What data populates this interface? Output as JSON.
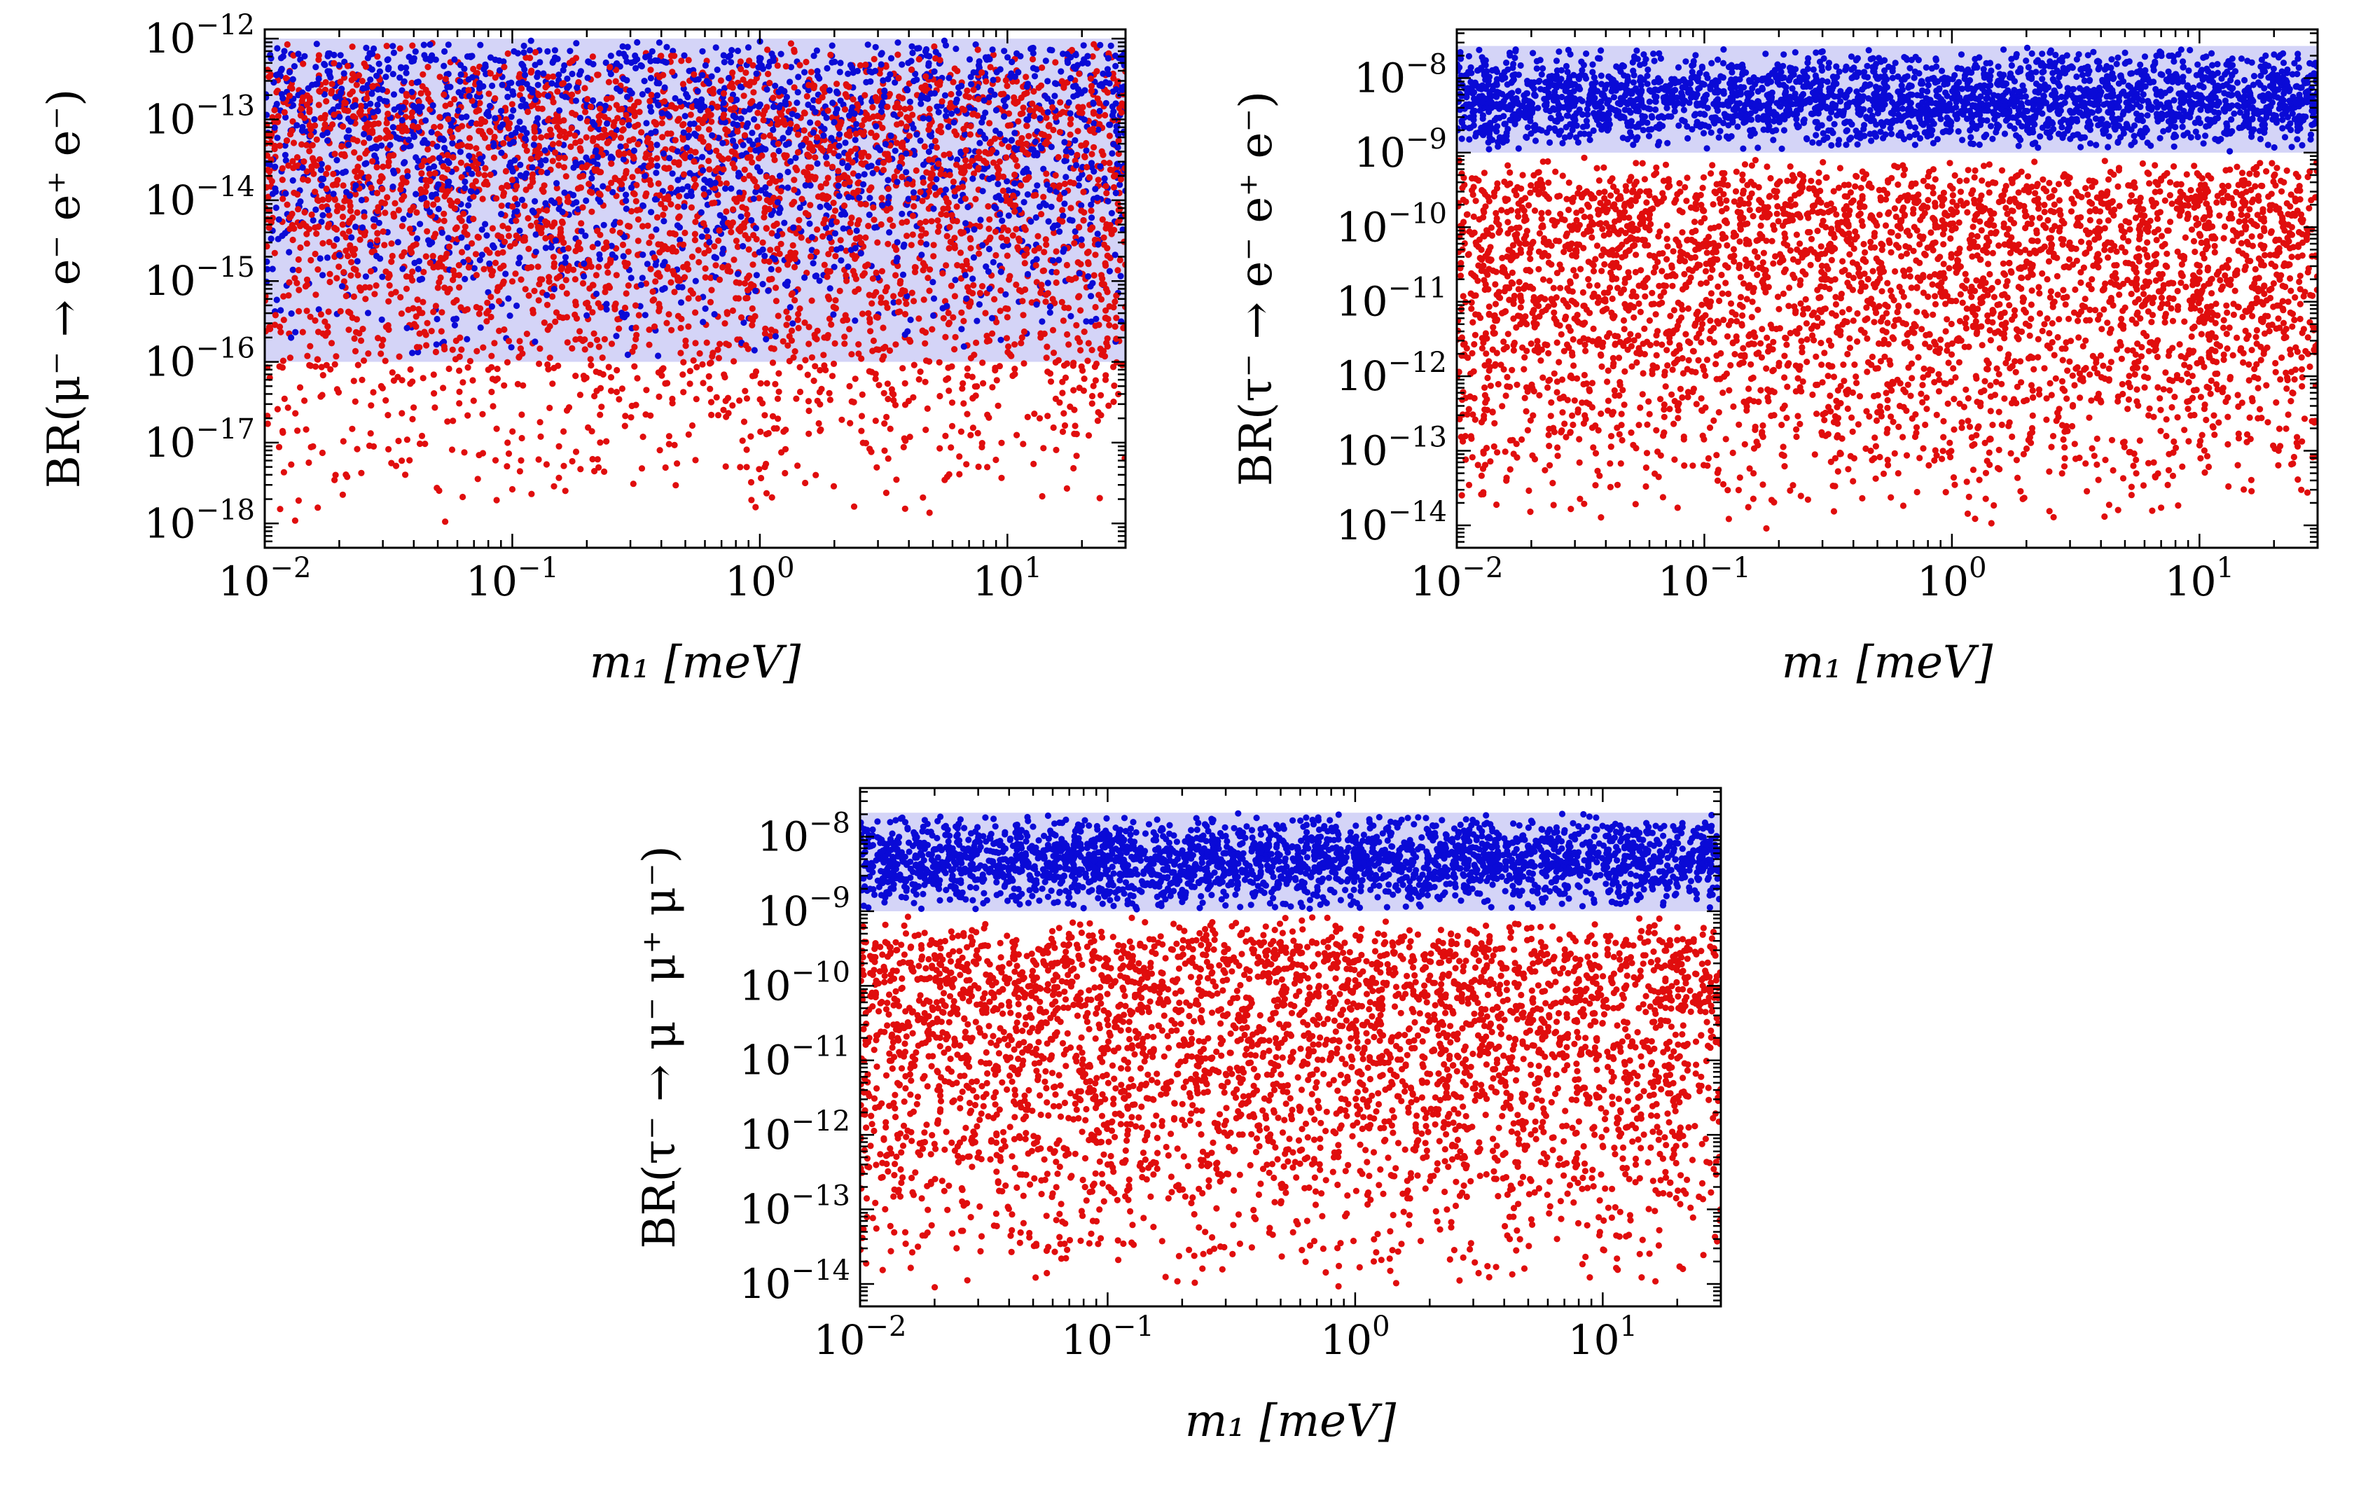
{
  "chart_data": [
    {
      "type": "scatter",
      "panel": "top-left",
      "xscale": "log",
      "yscale": "log",
      "xlabel": "m₁ [meV]",
      "ylabel": "BR(μ⁻ → e⁻ e⁺ e⁻)",
      "xlim": [
        0.01,
        30
      ],
      "ylim": [
        5e-19,
        1.3e-12
      ],
      "xticks": [
        {
          "value": 0.01,
          "label": "10⁻²"
        },
        {
          "value": 0.1,
          "label": "10⁻¹"
        },
        {
          "value": 1,
          "label": "10⁰"
        },
        {
          "value": 10,
          "label": "10¹"
        }
      ],
      "yticks": [
        {
          "value": 1e-18,
          "label": "10⁻¹⁸"
        },
        {
          "value": 1e-17,
          "label": "10⁻¹⁷"
        },
        {
          "value": 1e-16,
          "label": "10⁻¹⁶"
        },
        {
          "value": 1e-15,
          "label": "10⁻¹⁵"
        },
        {
          "value": 1e-14,
          "label": "10⁻¹⁴"
        },
        {
          "value": 1e-13,
          "label": "10⁻¹³"
        },
        {
          "value": 1e-12,
          "label": "10⁻¹²"
        }
      ],
      "band": {
        "ymin": 1e-16,
        "ymax": 1e-12,
        "color": "#d4d4f7"
      },
      "series": [
        {
          "name": "blue points",
          "color": "#0a0ad6",
          "n": 2000,
          "x_range": [
            0.01,
            30
          ],
          "y_range_log10": [
            -16,
            -12
          ],
          "y_mode_log10": -12.2
        },
        {
          "name": "red points",
          "color": "#e00d0d",
          "n": 3500,
          "x_range": [
            0.01,
            30
          ],
          "y_range_log10": [
            -18.1,
            -12
          ],
          "y_mode_log10": -12.9
        }
      ]
    },
    {
      "type": "scatter",
      "panel": "top-right",
      "xscale": "log",
      "yscale": "log",
      "xlabel": "m₁ [meV]",
      "ylabel": "BR(τ⁻ → e⁻ e⁺ e⁻)",
      "xlim": [
        0.01,
        30
      ],
      "ylim": [
        5e-15,
        4.5e-08
      ],
      "xticks": [
        {
          "value": 0.01,
          "label": "10⁻²"
        },
        {
          "value": 0.1,
          "label": "10⁻¹"
        },
        {
          "value": 1,
          "label": "10⁰"
        },
        {
          "value": 10,
          "label": "10¹"
        }
      ],
      "yticks": [
        {
          "value": 1e-14,
          "label": "10⁻¹⁴"
        },
        {
          "value": 1e-13,
          "label": "10⁻¹³"
        },
        {
          "value": 1e-12,
          "label": "10⁻¹²"
        },
        {
          "value": 1e-11,
          "label": "10⁻¹¹"
        },
        {
          "value": 1e-10,
          "label": "10⁻¹⁰"
        },
        {
          "value": 1e-09,
          "label": "10⁻⁹"
        },
        {
          "value": 1e-08,
          "label": "10⁻⁸"
        }
      ],
      "band": {
        "ymin": 1e-09,
        "ymax": 2.7e-08,
        "color": "#d4d4f7"
      },
      "series": [
        {
          "name": "blue points",
          "color": "#0a0ad6",
          "n": 2600,
          "x_range": [
            0.01,
            30
          ],
          "y_range_log10": [
            -9,
            -7.57
          ],
          "y_mode_log10": -8.3
        },
        {
          "name": "red points",
          "color": "#e00d0d",
          "n": 3800,
          "x_range": [
            0.01,
            30
          ],
          "y_range_log10": [
            -14.1,
            -9.05
          ],
          "y_mode_log10": -9.6
        }
      ]
    },
    {
      "type": "scatter",
      "panel": "bottom-center",
      "xscale": "log",
      "yscale": "log",
      "xlabel": "m₁ [meV]",
      "ylabel": "BR(τ⁻ → μ⁻ μ⁺ μ⁻)",
      "xlim": [
        0.01,
        30
      ],
      "ylim": [
        5e-15,
        4.5e-08
      ],
      "xticks": [
        {
          "value": 0.01,
          "label": "10⁻²"
        },
        {
          "value": 0.1,
          "label": "10⁻¹"
        },
        {
          "value": 1,
          "label": "10⁰"
        },
        {
          "value": 10,
          "label": "10¹"
        }
      ],
      "yticks": [
        {
          "value": 1e-14,
          "label": "10⁻¹⁴"
        },
        {
          "value": 1e-13,
          "label": "10⁻¹³"
        },
        {
          "value": 1e-12,
          "label": "10⁻¹²"
        },
        {
          "value": 1e-11,
          "label": "10⁻¹¹"
        },
        {
          "value": 1e-10,
          "label": "10⁻¹⁰"
        },
        {
          "value": 1e-09,
          "label": "10⁻⁹"
        },
        {
          "value": 1e-08,
          "label": "10⁻⁸"
        }
      ],
      "band": {
        "ymin": 1e-09,
        "ymax": 2.1e-08,
        "color": "#d4d4f7"
      },
      "series": [
        {
          "name": "blue points",
          "color": "#0a0ad6",
          "n": 2600,
          "x_range": [
            0.01,
            30
          ],
          "y_range_log10": [
            -9,
            -7.68
          ],
          "y_mode_log10": -8.3
        },
        {
          "name": "red points",
          "color": "#e00d0d",
          "n": 3800,
          "x_range": [
            0.01,
            30
          ],
          "y_range_log10": [
            -14.1,
            -9.05
          ],
          "y_mode_log10": -9.6
        }
      ]
    }
  ]
}
